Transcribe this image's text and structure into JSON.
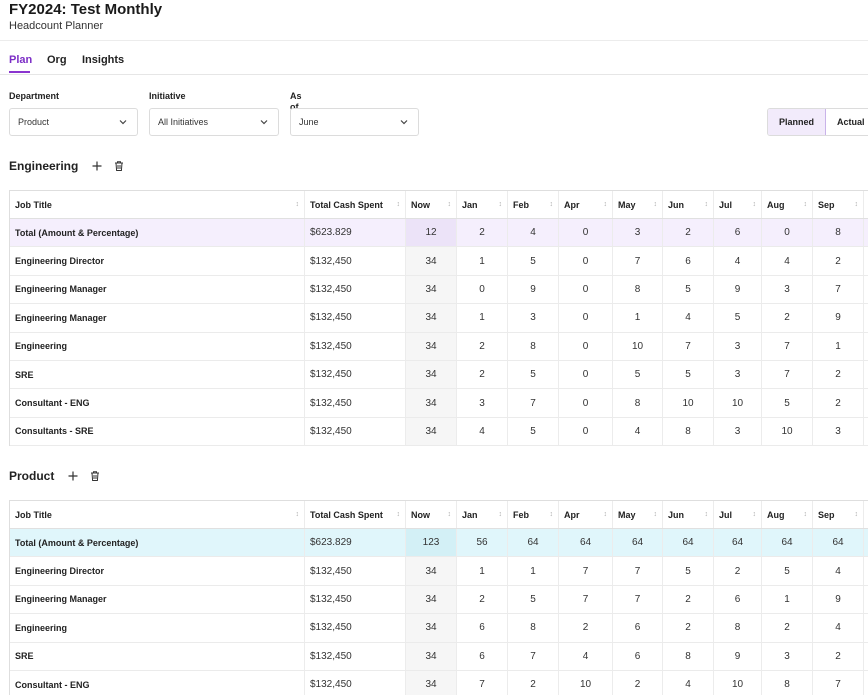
{
  "page": {
    "title": "FY2024: Test Monthly",
    "subtitle": "Headcount Planner"
  },
  "tabs": [
    {
      "label": "Plan",
      "active": true
    },
    {
      "label": "Org"
    },
    {
      "label": "Insights"
    }
  ],
  "filters": {
    "department": {
      "label": "Department",
      "value": "Product"
    },
    "initiative": {
      "label": "Initiative",
      "value": "All Initiatives"
    },
    "as_of": {
      "label": "As of",
      "value": "June"
    }
  },
  "view_toggle": {
    "planned": "Planned",
    "actual": "Actual",
    "selected": "Planned"
  },
  "columns": [
    "Job Title",
    "Total Cash Spent",
    "Now",
    "Jan",
    "Feb",
    "Apr",
    "May",
    "Jun",
    "Jul",
    "Aug",
    "Sep"
  ],
  "sections": [
    {
      "name": "Engineering",
      "rows": [
        {
          "title": "Total (Amount & Percentage)",
          "cash": "$623.829",
          "now": "12",
          "months": [
            "2",
            "4",
            "0",
            "3",
            "2",
            "6",
            "0",
            "8"
          ]
        },
        {
          "title": "Engineering Director",
          "cash": "$132,450",
          "now": "34",
          "months": [
            "1",
            "5",
            "0",
            "7",
            "6",
            "4",
            "4",
            "2"
          ]
        },
        {
          "title": "Engineering Manager",
          "cash": "$132,450",
          "now": "34",
          "months": [
            "0",
            "9",
            "0",
            "8",
            "5",
            "9",
            "3",
            "7"
          ]
        },
        {
          "title": "Engineering Manager",
          "cash": "$132,450",
          "now": "34",
          "months": [
            "1",
            "3",
            "0",
            "1",
            "4",
            "5",
            "2",
            "9"
          ]
        },
        {
          "title": "Engineering",
          "cash": "$132,450",
          "now": "34",
          "months": [
            "2",
            "8",
            "0",
            "10",
            "7",
            "3",
            "7",
            "1"
          ]
        },
        {
          "title": "SRE",
          "cash": "$132,450",
          "now": "34",
          "months": [
            "2",
            "5",
            "0",
            "5",
            "5",
            "3",
            "7",
            "2"
          ]
        },
        {
          "title": "Consultant - ENG",
          "cash": "$132,450",
          "now": "34",
          "months": [
            "3",
            "7",
            "0",
            "8",
            "10",
            "10",
            "5",
            "2"
          ]
        },
        {
          "title": "Consultants - SRE",
          "cash": "$132,450",
          "now": "34",
          "months": [
            "4",
            "5",
            "0",
            "4",
            "8",
            "3",
            "10",
            "3"
          ]
        }
      ]
    },
    {
      "name": "Product",
      "rows": [
        {
          "title": "Total (Amount & Percentage)",
          "cash": "$623.829",
          "now": "123",
          "months": [
            "56",
            "64",
            "64",
            "64",
            "64",
            "64",
            "64",
            "64"
          ]
        },
        {
          "title": "Engineering Director",
          "cash": "$132,450",
          "now": "34",
          "months": [
            "1",
            "1",
            "7",
            "7",
            "5",
            "2",
            "5",
            "4"
          ]
        },
        {
          "title": "Engineering Manager",
          "cash": "$132,450",
          "now": "34",
          "months": [
            "2",
            "5",
            "7",
            "7",
            "2",
            "6",
            "1",
            "9"
          ]
        },
        {
          "title": "Engineering",
          "cash": "$132,450",
          "now": "34",
          "months": [
            "6",
            "8",
            "2",
            "6",
            "2",
            "8",
            "2",
            "4"
          ]
        },
        {
          "title": "SRE",
          "cash": "$132,450",
          "now": "34",
          "months": [
            "6",
            "7",
            "4",
            "6",
            "8",
            "9",
            "3",
            "2"
          ]
        },
        {
          "title": "Consultant - ENG",
          "cash": "$132,450",
          "now": "34",
          "months": [
            "7",
            "2",
            "10",
            "2",
            "4",
            "10",
            "8",
            "7"
          ]
        }
      ]
    }
  ]
}
